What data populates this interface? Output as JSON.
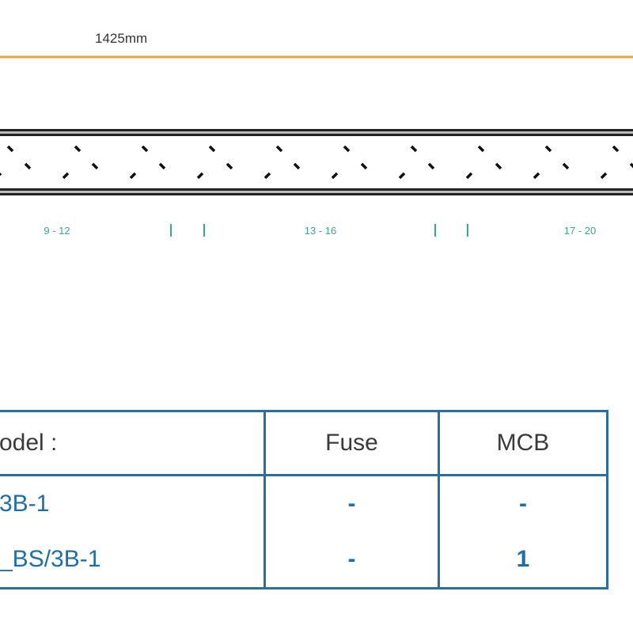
{
  "dimension": {
    "label": "1425mm",
    "color": "#e8a33a"
  },
  "ranges": [
    "9 - 12",
    "13 - 16",
    "17 - 20"
  ],
  "range_color": "#3aa88a",
  "table": {
    "border_color": "#2a6f9b",
    "headers": [
      "odel :",
      "Fuse",
      "MCB"
    ],
    "rows": [
      {
        "model": "3B-1",
        "fuse": "-",
        "mcb": "-"
      },
      {
        "model": "_BS/3B-1",
        "fuse": "-",
        "mcb": "1"
      }
    ]
  }
}
